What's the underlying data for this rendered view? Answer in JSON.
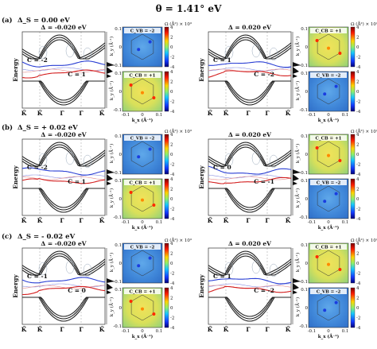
{
  "title": "θ = 1.41° eV",
  "rows": [
    {
      "label": "(a)",
      "delta_s": "Δ_S = 0.00 eV",
      "panels": [
        {
          "delta": "Δ = -0.020 eV",
          "chern_blue": "C = -2",
          "chern_red": "C = 1",
          "map_top_label": "C_VB = -2",
          "map_bottom_label": "C_CB = +1"
        },
        {
          "delta": "Δ = 0.020 eV",
          "chern_blue": "C = 1",
          "chern_red": "C = -2",
          "map_top_label": "C_CB = +1",
          "map_bottom_label": "C_VB = -2"
        }
      ]
    },
    {
      "label": "(b)",
      "delta_s": "Δ_S = + 0.02 eV",
      "panels": [
        {
          "delta": "Δ = -0.020 eV",
          "chern_blue": "C = -2",
          "chern_red": "C = 1",
          "map_top_label": "C_VB = -2",
          "map_bottom_label": "C_CB = +1"
        },
        {
          "delta": "Δ = 0.020 eV",
          "chern_blue": "C = 0",
          "chern_red": "C = -1",
          "map_top_label": "C_CB = +1",
          "map_bottom_label": "C_VB = -2"
        }
      ]
    },
    {
      "label": "(c)",
      "delta_s": "Δ_S = - 0.02 eV",
      "panels": [
        {
          "delta": "Δ = -0.020 eV",
          "chern_blue": "C = -1",
          "chern_red": "C = 0",
          "map_top_label": "C_VB = -2",
          "map_bottom_label": "C_CB = +1"
        },
        {
          "delta": "Δ = 0.020 eV",
          "chern_blue": "C = 1",
          "chern_red": "C = -2",
          "map_top_label": "C_CB = +1",
          "map_bottom_label": "C_VB = -2"
        }
      ]
    }
  ],
  "axes": {
    "band_ylabel": "Energy",
    "band_xticks": [
      "K̄",
      "K̄",
      "Γ̄",
      "Γ̄",
      "K̄"
    ],
    "map_ylabel": "k_y (Å⁻¹)",
    "map_xlabel": "k_x (Å⁻¹)",
    "map_xticks": [
      "-0.1",
      "0",
      "0.1"
    ],
    "map_yticks": [
      "0.1",
      "0",
      "-0.1"
    ],
    "cbar_title": "Ω (Å²) × 10³",
    "cbar_ticks": [
      "4",
      "2",
      "0",
      "-2",
      "-4"
    ]
  },
  "colors": {
    "blue_band": "#2a3fd4",
    "red_band": "#d42020",
    "dark_band": "#222222",
    "map_blue": "#3a7fd6",
    "map_yellow": "#e6e04a"
  }
}
